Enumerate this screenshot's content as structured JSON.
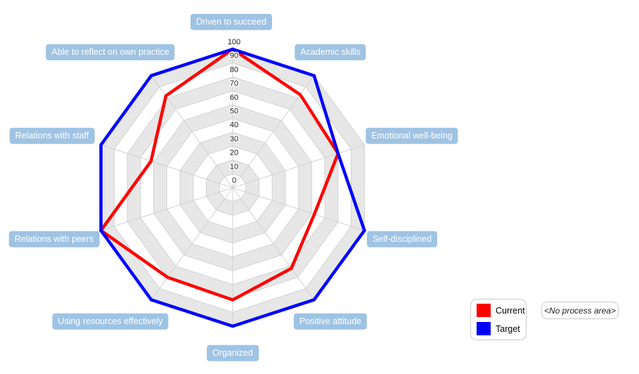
{
  "chart_data": {
    "type": "radar",
    "categories": [
      "Driven to succeed",
      "Academic skills",
      "Emotional well-being",
      "Self-disciplined",
      "Positive attitude",
      "Organized",
      "Using resources effectively",
      "Relations with peers",
      "Relations with staff",
      "Able to reflect on own practice"
    ],
    "series": [
      {
        "name": "Current",
        "color": "#ff0000",
        "values": [
          100,
          83,
          80,
          62,
          72,
          81,
          80,
          100,
          62,
          82
        ]
      },
      {
        "name": "Target",
        "color": "#0000ff",
        "values": [
          100,
          100,
          80,
          100,
          100,
          100,
          100,
          100,
          100,
          100
        ]
      }
    ],
    "axis": {
      "min": 0,
      "max": 100,
      "step": 10,
      "ticks": [
        0,
        10,
        20,
        30,
        40,
        50,
        60,
        70,
        80,
        90,
        100
      ]
    },
    "grid": {
      "shape": "polygon",
      "band_color": "#e7e7e7",
      "line_color": "#d2d2d2",
      "alternating_bands": true
    },
    "legend_position": "bottom-right",
    "title": ""
  },
  "legend": {
    "current_label": "Current",
    "target_label": "Target"
  },
  "process_area": {
    "label": "<No process area>"
  },
  "colors": {
    "category_chip": "#9fc3e3",
    "category_chip_text": "#ffffff"
  }
}
